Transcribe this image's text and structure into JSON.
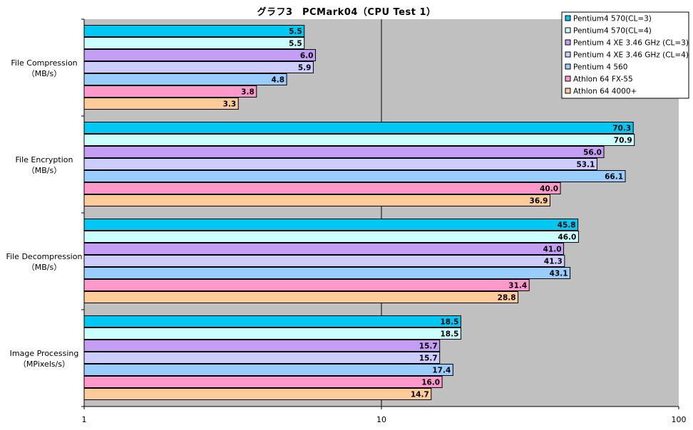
{
  "chart_data": {
    "type": "bar",
    "orientation": "horizontal",
    "title": "グラフ3　PCMark04（CPU Test 1）",
    "x_scale": "log",
    "xlim": [
      1,
      100
    ],
    "x_ticks": [
      "1",
      "10",
      "100"
    ],
    "grid": true,
    "legend_placement": "top-right",
    "categories": [
      [
        "File Compression",
        "（MB/s）"
      ],
      [
        "File Encryption",
        "（MB/s）"
      ],
      [
        "File Decompression",
        "（MB/s）"
      ],
      [
        "Image Processing",
        "（MPixels/s）"
      ]
    ],
    "series": [
      {
        "name": "Pentium4 570(CL=3)",
        "color": "#00c8f5",
        "values": [
          5.5,
          70.3,
          45.8,
          18.5
        ]
      },
      {
        "name": "Pentium4 570(CL=4)",
        "color": "#ccffff",
        "values": [
          5.5,
          70.9,
          46.0,
          18.5
        ]
      },
      {
        "name": "Pentium 4 XE 3.46 GHz (CL=3)",
        "color": "#c49ef5",
        "values": [
          6.0,
          56.0,
          41.0,
          15.7
        ]
      },
      {
        "name": "Pentium 4 XE 3.46 GHz (CL=4)",
        "color": "#ccccff",
        "values": [
          5.9,
          53.1,
          41.3,
          15.7
        ]
      },
      {
        "name": "Pentium 4 560",
        "color": "#99ccff",
        "values": [
          4.8,
          66.1,
          43.1,
          17.4
        ]
      },
      {
        "name": "Athlon 64 FX-55",
        "color": "#ff99cc",
        "values": [
          3.8,
          40.0,
          31.4,
          16.0
        ]
      },
      {
        "name": "Athlon 64 4000+",
        "color": "#ffcc99",
        "values": [
          3.3,
          36.9,
          28.8,
          14.7
        ]
      }
    ]
  }
}
